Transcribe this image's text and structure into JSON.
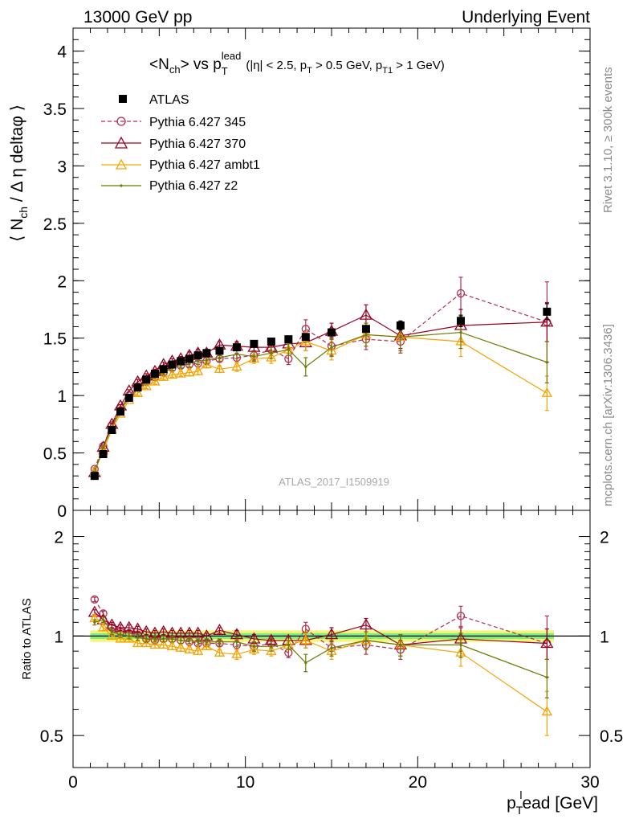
{
  "header": {
    "left": "13000 GeV pp",
    "right": "Underlying Event"
  },
  "side": {
    "rivet": "Rivet 3.1.10, ≥ 300k events",
    "mcplots": "mcplots.cern.ch [arXiv:1306.3436]"
  },
  "watermark": "ATLAS_2017_I1509919",
  "chart_data": [
    {
      "type": "scatter",
      "title": "<N_ch> vs p_T^lead (|η| < 2.5, p_T > 0.5 GeV, p_T1 > 1 GeV)",
      "title_parts": {
        "main": "<N",
        "main_sub": "ch",
        "mid": "> vs p",
        "mid_sub": "T",
        "mid_sup": "lead",
        "cuts": "(|η| < 2.5, p",
        "cuts_sub1": "T",
        "cuts_mid": " > 0.5 GeV, p",
        "cuts_sub2": "T1",
        "cuts_end": " > 1 GeV)"
      },
      "ylabel": "⟨ N_ch / Δ η deltaφ ⟩",
      "ylabel_parts": {
        "a": "⟨ N",
        "sub": "ch",
        "b": " / Δ η deltaφ ⟩"
      },
      "xlim": [
        0,
        30
      ],
      "ylim": [
        0,
        4.2
      ],
      "yticks": [
        {
          "v": 0,
          "label": "0"
        },
        {
          "v": 0.5,
          "label": "0.5"
        },
        {
          "v": 1,
          "label": "1"
        },
        {
          "v": 1.5,
          "label": "1.5"
        },
        {
          "v": 2,
          "label": "2"
        },
        {
          "v": 2.5,
          "label": "2.5"
        },
        {
          "v": 3,
          "label": "3"
        },
        {
          "v": 3.5,
          "label": "3.5"
        },
        {
          "v": 4,
          "label": "4"
        }
      ],
      "legend_position": "top-left",
      "x": [
        1.25,
        1.75,
        2.25,
        2.75,
        3.25,
        3.75,
        4.25,
        4.75,
        5.25,
        5.75,
        6.25,
        6.75,
        7.25,
        7.75,
        8.5,
        9.5,
        10.5,
        11.5,
        12.5,
        13.5,
        15,
        17,
        19,
        22.5,
        27.5
      ],
      "series": [
        {
          "name": "ATLAS",
          "key": "atlas",
          "color": "#000000",
          "values": [
            0.3,
            0.49,
            0.7,
            0.86,
            0.98,
            1.07,
            1.14,
            1.19,
            1.23,
            1.27,
            1.3,
            1.32,
            1.35,
            1.37,
            1.39,
            1.42,
            1.45,
            1.47,
            1.49,
            1.51,
            1.55,
            1.58,
            1.61,
            1.65,
            1.73
          ],
          "errors": [
            0.01,
            0.01,
            0.01,
            0.01,
            0.01,
            0.01,
            0.01,
            0.01,
            0.01,
            0.01,
            0.01,
            0.01,
            0.01,
            0.01,
            0.01,
            0.01,
            0.02,
            0.02,
            0.02,
            0.02,
            0.03,
            0.03,
            0.04,
            0.05,
            0.07
          ]
        },
        {
          "name": "Pythia 6.427 345",
          "key": "p345",
          "color": "#b03050",
          "values": [
            0.36,
            0.56,
            0.74,
            0.89,
            1.0,
            1.08,
            1.12,
            1.16,
            1.2,
            1.24,
            1.26,
            1.27,
            1.28,
            1.3,
            1.32,
            1.33,
            1.35,
            1.4,
            1.32,
            1.58,
            1.43,
            1.49,
            1.47,
            1.89,
            1.64
          ],
          "errors": [
            0.01,
            0.01,
            0.01,
            0.01,
            0.01,
            0.02,
            0.02,
            0.02,
            0.02,
            0.02,
            0.02,
            0.03,
            0.03,
            0.03,
            0.03,
            0.04,
            0.04,
            0.05,
            0.05,
            0.08,
            0.08,
            0.09,
            0.1,
            0.14,
            0.35
          ]
        },
        {
          "name": "Pythia 6.427 370",
          "key": "p370",
          "color": "#990022",
          "values": [
            0.33,
            0.55,
            0.75,
            0.91,
            1.04,
            1.12,
            1.17,
            1.21,
            1.27,
            1.3,
            1.32,
            1.35,
            1.37,
            1.37,
            1.44,
            1.43,
            1.42,
            1.42,
            1.45,
            1.46,
            1.56,
            1.7,
            1.52,
            1.61,
            1.64
          ],
          "errors": [
            0.01,
            0.01,
            0.01,
            0.01,
            0.01,
            0.02,
            0.02,
            0.02,
            0.02,
            0.02,
            0.02,
            0.03,
            0.03,
            0.03,
            0.03,
            0.04,
            0.04,
            0.05,
            0.05,
            0.07,
            0.07,
            0.09,
            0.11,
            0.14,
            0.17
          ]
        },
        {
          "name": "Pythia 6.427 ambt1",
          "key": "ambt1",
          "color": "#f5a300",
          "values": [
            0.34,
            0.52,
            0.7,
            0.84,
            0.96,
            1.02,
            1.08,
            1.12,
            1.16,
            1.18,
            1.19,
            1.2,
            1.21,
            1.27,
            1.23,
            1.25,
            1.32,
            1.33,
            1.4,
            1.47,
            1.39,
            1.53,
            1.51,
            1.47,
            1.02
          ],
          "errors": [
            0.01,
            0.01,
            0.01,
            0.01,
            0.01,
            0.02,
            0.02,
            0.02,
            0.02,
            0.02,
            0.02,
            0.03,
            0.03,
            0.03,
            0.03,
            0.04,
            0.04,
            0.05,
            0.05,
            0.08,
            0.08,
            0.1,
            0.12,
            0.13,
            0.15
          ]
        },
        {
          "name": "Pythia 6.427 z2",
          "key": "z2",
          "color": "#6b7a00",
          "values": [
            0.33,
            0.55,
            0.72,
            0.87,
            0.98,
            1.06,
            1.12,
            1.17,
            1.2,
            1.24,
            1.26,
            1.28,
            1.3,
            1.31,
            1.33,
            1.36,
            1.34,
            1.37,
            1.4,
            1.25,
            1.42,
            1.53,
            1.51,
            1.55,
            1.29
          ],
          "errors": [
            0.01,
            0.01,
            0.01,
            0.01,
            0.01,
            0.02,
            0.02,
            0.02,
            0.02,
            0.02,
            0.02,
            0.03,
            0.03,
            0.03,
            0.03,
            0.04,
            0.04,
            0.05,
            0.05,
            0.08,
            0.08,
            0.1,
            0.12,
            0.14,
            0.18
          ]
        }
      ]
    },
    {
      "type": "scatter",
      "xlabel": "p_T^lead [GeV]",
      "xlabel_parts": {
        "a": "p",
        "sub": "T",
        "sup": "l",
        "b": "ead [GeV]"
      },
      "ylabel": "Ratio to ATLAS",
      "xlim": [
        0,
        30
      ],
      "ylim": [
        0.4,
        2.4
      ],
      "log_y": true,
      "xticks": [
        {
          "v": 0,
          "label": "0"
        },
        {
          "v": 10,
          "label": "10"
        },
        {
          "v": 20,
          "label": "20"
        },
        {
          "v": 30,
          "label": "30"
        }
      ],
      "yticks": [
        {
          "v": 0.5,
          "label": "0.5"
        },
        {
          "v": 1,
          "label": "1"
        },
        {
          "v": 2,
          "label": "2"
        }
      ],
      "reference_line": 1,
      "band_colors": {
        "inner": "#7cf07c",
        "outer": "#f5f57a"
      },
      "band_stat": 0.02,
      "band_total": 0.04,
      "x": [
        1.25,
        1.75,
        2.25,
        2.75,
        3.25,
        3.75,
        4.25,
        4.75,
        5.25,
        5.75,
        6.25,
        6.75,
        7.25,
        7.75,
        8.5,
        9.5,
        10.5,
        11.5,
        12.5,
        13.5,
        15,
        17,
        19,
        22.5,
        27.5
      ],
      "series": [
        {
          "key": "p345",
          "color": "#b03050",
          "values": [
            1.29,
            1.17,
            1.06,
            1.03,
            1.02,
            1.01,
            0.98,
            0.97,
            0.98,
            0.98,
            0.97,
            0.96,
            0.95,
            0.95,
            0.95,
            0.94,
            0.93,
            0.95,
            0.89,
            1.05,
            0.92,
            0.94,
            0.91,
            1.15,
            0.95
          ],
          "errors": [
            0.02,
            0.02,
            0.02,
            0.02,
            0.02,
            0.02,
            0.02,
            0.02,
            0.02,
            0.02,
            0.02,
            0.02,
            0.02,
            0.02,
            0.02,
            0.03,
            0.03,
            0.03,
            0.03,
            0.05,
            0.05,
            0.06,
            0.06,
            0.08,
            0.2
          ]
        },
        {
          "key": "p370",
          "color": "#990022",
          "values": [
            1.18,
            1.12,
            1.08,
            1.06,
            1.06,
            1.05,
            1.03,
            1.02,
            1.03,
            1.02,
            1.02,
            1.02,
            1.02,
            1.0,
            1.04,
            1.01,
            0.98,
            0.97,
            0.97,
            0.97,
            1.01,
            1.08,
            0.94,
            0.98,
            0.95
          ],
          "errors": [
            0.02,
            0.02,
            0.02,
            0.02,
            0.02,
            0.02,
            0.02,
            0.02,
            0.02,
            0.02,
            0.02,
            0.02,
            0.02,
            0.02,
            0.02,
            0.03,
            0.03,
            0.03,
            0.03,
            0.05,
            0.05,
            0.05,
            0.07,
            0.08,
            0.1
          ]
        },
        {
          "key": "ambt1",
          "color": "#f5a300",
          "values": [
            1.13,
            1.06,
            1.0,
            0.98,
            0.98,
            0.95,
            0.95,
            0.94,
            0.94,
            0.93,
            0.92,
            0.91,
            0.9,
            0.93,
            0.89,
            0.88,
            0.91,
            0.9,
            0.94,
            0.97,
            0.9,
            0.97,
            0.94,
            0.89,
            0.59
          ],
          "errors": [
            0.02,
            0.02,
            0.02,
            0.02,
            0.02,
            0.02,
            0.02,
            0.02,
            0.02,
            0.02,
            0.02,
            0.02,
            0.02,
            0.02,
            0.02,
            0.03,
            0.03,
            0.03,
            0.03,
            0.05,
            0.05,
            0.06,
            0.07,
            0.08,
            0.09
          ]
        },
        {
          "key": "z2",
          "color": "#6b7a00",
          "values": [
            1.1,
            1.12,
            1.03,
            1.01,
            1.0,
            0.99,
            0.98,
            0.98,
            0.98,
            0.98,
            0.97,
            0.97,
            0.96,
            0.96,
            0.96,
            0.96,
            0.93,
            0.93,
            0.94,
            0.83,
            0.92,
            0.97,
            0.94,
            0.94,
            0.75
          ],
          "errors": [
            0.02,
            0.02,
            0.02,
            0.02,
            0.02,
            0.02,
            0.02,
            0.02,
            0.02,
            0.02,
            0.02,
            0.02,
            0.02,
            0.02,
            0.02,
            0.03,
            0.03,
            0.03,
            0.03,
            0.05,
            0.05,
            0.06,
            0.07,
            0.08,
            0.1
          ]
        }
      ]
    }
  ]
}
